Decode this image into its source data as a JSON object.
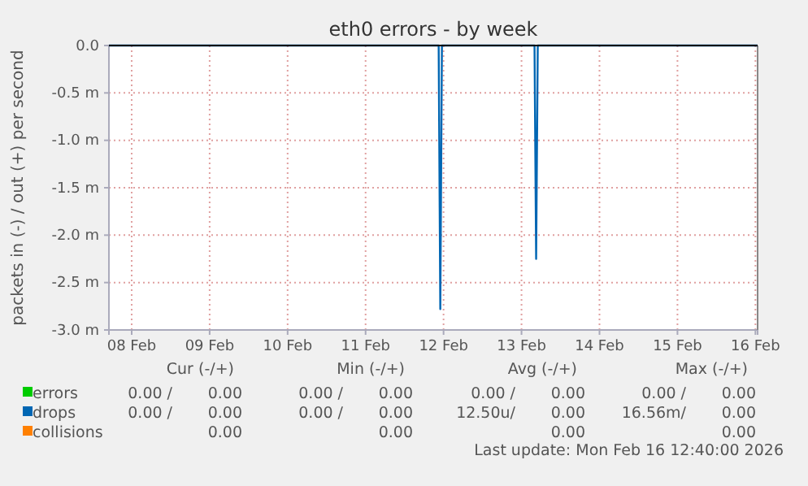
{
  "chart_data": {
    "type": "line",
    "title": "eth0 errors - by week",
    "ylabel": "packets in (-) / out (+) per second",
    "xlim": [
      "2026-02-08T05:00",
      "2026-02-16T12:40"
    ],
    "xticks": [
      {
        "value": "2026-02-08T12:00",
        "label": "08 Feb"
      },
      {
        "value": "2026-02-09T12:00",
        "label": "09 Feb"
      },
      {
        "value": "2026-02-10T12:00",
        "label": "10 Feb"
      },
      {
        "value": "2026-02-11T12:00",
        "label": "11 Feb"
      },
      {
        "value": "2026-02-12T12:00",
        "label": "12 Feb"
      },
      {
        "value": "2026-02-13T12:00",
        "label": "13 Feb"
      },
      {
        "value": "2026-02-14T12:00",
        "label": "14 Feb"
      },
      {
        "value": "2026-02-15T12:00",
        "label": "15 Feb"
      },
      {
        "value": "2026-02-16T12:00",
        "label": "16 Feb"
      }
    ],
    "ylim": [
      -3,
      0
    ],
    "yticks": [
      {
        "value": -3,
        "label": "-3.0 m"
      },
      {
        "value": -2.5,
        "label": "-2.5 m"
      },
      {
        "value": -2,
        "label": "-2.0 m"
      },
      {
        "value": -1.5,
        "label": "-1.5 m"
      },
      {
        "value": -1,
        "label": "-1.0 m"
      },
      {
        "value": -0.5,
        "label": "-0.5 m"
      },
      {
        "value": 0,
        "label": "0.0"
      }
    ],
    "grid": true,
    "legend": "bottom",
    "line_style": "solid",
    "marker": "none",
    "series": [
      {
        "name": "errors",
        "color": "#00cc00"
      },
      {
        "name": "drops",
        "color": "#0066b3",
        "x": [
          "2026-02-08T05:00",
          "2026-02-12T10:30",
          "2026-02-12T11:00",
          "2026-02-12T11:30",
          "2026-02-13T16:00",
          "2026-02-13T16:30",
          "2026-02-13T17:00",
          "2026-02-16T12:40"
        ],
        "values": [
          0,
          0,
          -2.78,
          0,
          0,
          -2.25,
          0,
          0
        ]
      },
      {
        "name": "collisions",
        "color": "#ff8000"
      }
    ],
    "annotations": [
      "Cur (-/+)",
      "Min (-/+)",
      "Avg (-/+)",
      "Max (-/+)",
      "0.00 /",
      "0.00",
      "0.00 /",
      "0.00",
      "0.00 /",
      "0.00",
      "0.00 /",
      "0.00",
      "0.00 /",
      "0.00",
      "0.00 /",
      "0.00",
      "12.50u/",
      "0.00",
      "16.56m/",
      "0.00",
      "0.00",
      "0.00",
      "0.00",
      "0.00",
      "Last update: Mon Feb 16 12:40:00 2026"
    ]
  }
}
